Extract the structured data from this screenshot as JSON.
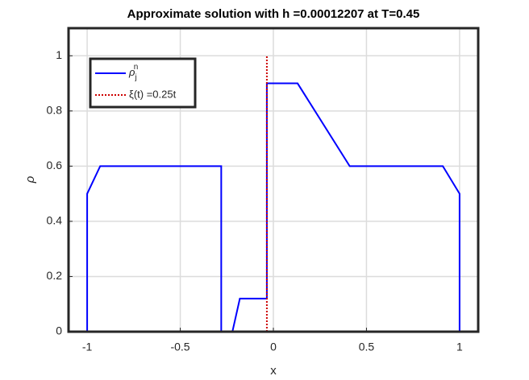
{
  "chart_data": {
    "type": "line",
    "title": "Approximate solution with h =0.00012207 at T=0.45",
    "xlabel": "x",
    "ylabel": "ρ",
    "xlim": [
      -1.1,
      1.1
    ],
    "ylim": [
      0,
      1.1
    ],
    "xticks": [
      -1,
      -0.5,
      0,
      0.5,
      1
    ],
    "yticks": [
      0,
      0.2,
      0.4,
      0.6,
      0.8,
      1
    ],
    "grid": true,
    "legend": "upper left",
    "series": [
      {
        "name": "ρ_j^n",
        "color": "#0000ff",
        "style": "solid",
        "x": [
          -1,
          -1,
          -0.93,
          -0.28,
          -0.28,
          -0.22,
          -0.18,
          -0.035,
          -0.035,
          0.13,
          0.41,
          0.91,
          1,
          1
        ],
        "values": [
          0,
          0.5,
          0.6,
          0.6,
          0,
          0,
          0.12,
          0.12,
          0.9,
          0.9,
          0.6,
          0.6,
          0.5,
          0
        ]
      },
      {
        "name": "ξ(t) =0.25t",
        "color": "#cc0000",
        "style": "dotted",
        "x": [
          -0.035,
          -0.035
        ],
        "values": [
          0,
          1
        ]
      }
    ]
  }
}
